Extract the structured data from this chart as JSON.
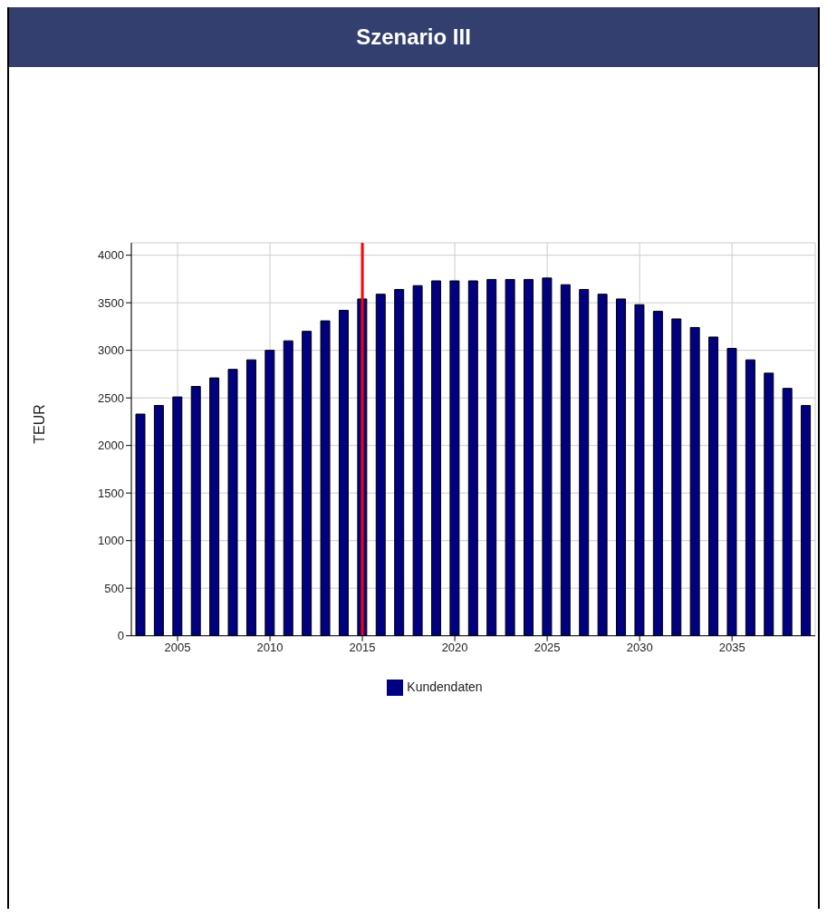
{
  "chart_data": {
    "type": "bar",
    "title": "Szenario III",
    "ylabel": "TEUR",
    "x": [
      2003,
      2004,
      2005,
      2006,
      2007,
      2008,
      2009,
      2010,
      2011,
      2012,
      2013,
      2014,
      2015,
      2016,
      2017,
      2018,
      2019,
      2020,
      2021,
      2022,
      2023,
      2024,
      2025,
      2026,
      2027,
      2028,
      2029,
      2030,
      2031,
      2032,
      2033,
      2034,
      2035,
      2036,
      2037,
      2038,
      2039
    ],
    "series": [
      {
        "name": "Kundendaten",
        "color": "#000080",
        "values": [
          2330,
          2420,
          2510,
          2620,
          2710,
          2800,
          2900,
          3000,
          3100,
          3200,
          3310,
          3420,
          3540,
          3590,
          3640,
          3680,
          3730,
          3730,
          3730,
          3745,
          3745,
          3745,
          3760,
          3690,
          3640,
          3590,
          3540,
          3480,
          3410,
          3330,
          3240,
          3140,
          3020,
          2900,
          2760,
          2600,
          2420
        ]
      }
    ],
    "xlim": [
      2002.5,
      2039.5
    ],
    "xticks": [
      2005,
      2010,
      2015,
      2020,
      2025,
      2030,
      2035
    ],
    "ylim": [
      0,
      4130
    ],
    "yticks": [
      0,
      500,
      1000,
      1500,
      2000,
      2500,
      3000,
      3500,
      4000
    ],
    "ref_lines": [
      {
        "axis": "x",
        "value": 2015,
        "color": "#ff0000"
      }
    ],
    "grid": true,
    "legend": "bottom"
  }
}
